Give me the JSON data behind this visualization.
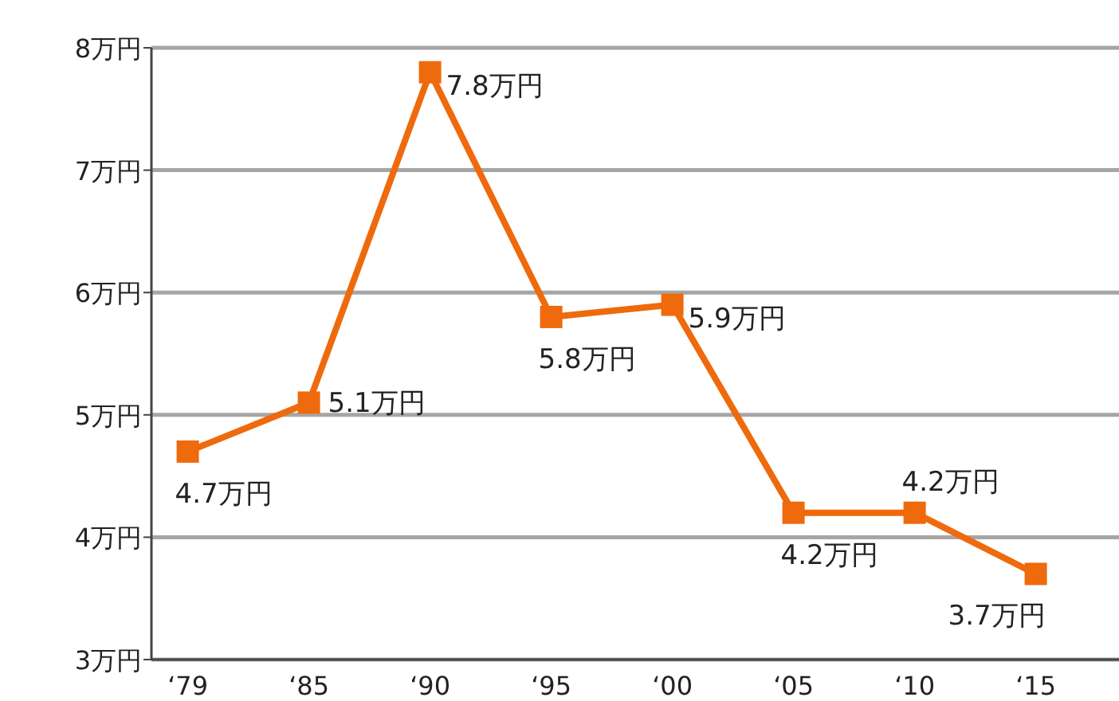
{
  "chart_data": {
    "type": "line",
    "categories": [
      "‘79",
      "‘85",
      "‘90",
      "‘95",
      "‘00",
      "‘05",
      "‘10",
      "‘15"
    ],
    "series": [
      {
        "color": "#ee6a0c",
        "values": [
          4.7,
          5.1,
          7.8,
          5.8,
          5.9,
          4.2,
          4.2,
          3.7
        ],
        "value_labels": [
          "4.7万円",
          "5.1万円",
          "7.8万円",
          "5.8万円",
          "5.9万円",
          "4.2万円",
          "4.2万円",
          "3.7万円"
        ]
      }
    ],
    "ylim": [
      3,
      8
    ],
    "yticks": [
      {
        "value": 3,
        "label": "3万円"
      },
      {
        "value": 4,
        "label": "4万円"
      },
      {
        "value": 5,
        "label": "5万円"
      },
      {
        "value": 6,
        "label": "6万円"
      },
      {
        "value": 7,
        "label": "7万円"
      },
      {
        "value": 8,
        "label": "8万円"
      }
    ],
    "grid": "y",
    "marker": "square",
    "line_style": "solid"
  }
}
